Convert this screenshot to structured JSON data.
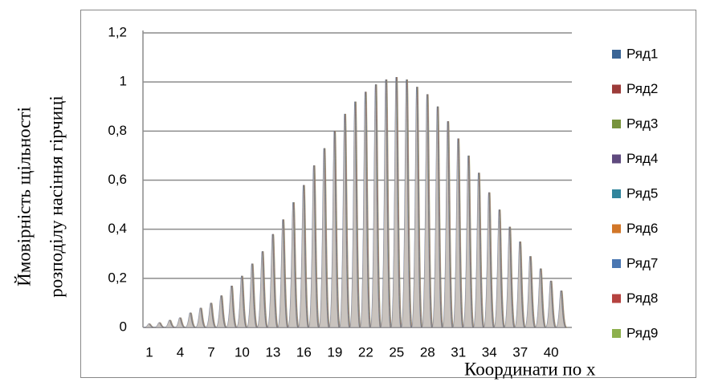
{
  "chart_data": {
    "type": "spike",
    "y_label": [
      "Ймовірність щільності",
      "розподілу  насіння гірчиці"
    ],
    "x_label": "Координати  по x",
    "categories": [
      "1",
      null,
      null,
      "4",
      null,
      null,
      "7",
      null,
      null,
      "10",
      null,
      null,
      "13",
      null,
      null,
      "16",
      null,
      null,
      "19",
      null,
      null,
      "22",
      null,
      null,
      "25",
      null,
      null,
      "28",
      null,
      null,
      "31",
      null,
      null,
      "34",
      null,
      null,
      "37",
      null,
      null,
      "40",
      null
    ],
    "ylim": [
      0,
      1.2
    ],
    "yticks": [
      0,
      {
        "value": 0.2,
        "label": "0,2"
      },
      {
        "value": 0.4,
        "label": "0,4"
      },
      {
        "value": 0.6,
        "label": "0,6"
      },
      {
        "value": 0.8,
        "label": "0,8"
      },
      1,
      {
        "value": 1.2,
        "label": "1,2"
      }
    ],
    "grid": true,
    "legend": "right",
    "series": [
      {
        "name": "Ряд1",
        "color": "#3a6596",
        "values": [
          0.015,
          0.02,
          0.03,
          0.04,
          0.06,
          0.08,
          0.1,
          0.13,
          0.17,
          0.21,
          0.26,
          0.31,
          0.38,
          0.44,
          0.51,
          0.58,
          0.66,
          0.73,
          0.8,
          0.87,
          0.92,
          0.96,
          0.99,
          1.01,
          1.02,
          1.01,
          0.98,
          0.95,
          0.9,
          0.84,
          0.77,
          0.7,
          0.63,
          0.55,
          0.48,
          0.41,
          0.35,
          0.29,
          0.24,
          0.19,
          0.15
        ]
      },
      {
        "name": "Ряд2",
        "color": "#9c3b39",
        "values": [
          0.015,
          0.02,
          0.03,
          0.04,
          0.06,
          0.08,
          0.1,
          0.13,
          0.17,
          0.21,
          0.26,
          0.31,
          0.38,
          0.44,
          0.51,
          0.58,
          0.66,
          0.73,
          0.8,
          0.87,
          0.92,
          0.96,
          0.99,
          1.01,
          1.02,
          1.01,
          0.98,
          0.95,
          0.9,
          0.84,
          0.77,
          0.7,
          0.63,
          0.55,
          0.48,
          0.41,
          0.35,
          0.29,
          0.24,
          0.19,
          0.15
        ]
      },
      {
        "name": "Ряд3",
        "color": "#77933c",
        "values": [
          0.015,
          0.02,
          0.03,
          0.04,
          0.06,
          0.08,
          0.1,
          0.13,
          0.17,
          0.21,
          0.26,
          0.31,
          0.38,
          0.44,
          0.51,
          0.58,
          0.66,
          0.73,
          0.8,
          0.87,
          0.92,
          0.96,
          0.99,
          1.01,
          1.02,
          1.01,
          0.98,
          0.95,
          0.9,
          0.84,
          0.77,
          0.7,
          0.63,
          0.55,
          0.48,
          0.41,
          0.35,
          0.29,
          0.24,
          0.19,
          0.15
        ]
      },
      {
        "name": "Ряд4",
        "color": "#5f4a7e",
        "values": [
          0.015,
          0.02,
          0.03,
          0.04,
          0.06,
          0.08,
          0.1,
          0.13,
          0.17,
          0.21,
          0.26,
          0.31,
          0.38,
          0.44,
          0.51,
          0.58,
          0.66,
          0.73,
          0.8,
          0.87,
          0.92,
          0.96,
          0.99,
          1.01,
          1.02,
          1.01,
          0.98,
          0.95,
          0.9,
          0.84,
          0.77,
          0.7,
          0.63,
          0.55,
          0.48,
          0.41,
          0.35,
          0.29,
          0.24,
          0.19,
          0.15
        ]
      },
      {
        "name": "Ряд5",
        "color": "#31859c",
        "values": [
          0.015,
          0.02,
          0.03,
          0.04,
          0.06,
          0.08,
          0.1,
          0.13,
          0.17,
          0.21,
          0.26,
          0.31,
          0.38,
          0.44,
          0.51,
          0.58,
          0.66,
          0.73,
          0.8,
          0.87,
          0.92,
          0.96,
          0.99,
          1.01,
          1.02,
          1.01,
          0.98,
          0.95,
          0.9,
          0.84,
          0.77,
          0.7,
          0.63,
          0.55,
          0.48,
          0.41,
          0.35,
          0.29,
          0.24,
          0.19,
          0.15
        ]
      },
      {
        "name": "Ряд6",
        "color": "#d27628",
        "values": [
          0.015,
          0.02,
          0.03,
          0.04,
          0.06,
          0.08,
          0.1,
          0.13,
          0.17,
          0.21,
          0.26,
          0.31,
          0.38,
          0.44,
          0.51,
          0.58,
          0.66,
          0.73,
          0.8,
          0.87,
          0.92,
          0.96,
          0.99,
          1.01,
          1.02,
          1.01,
          0.98,
          0.95,
          0.9,
          0.84,
          0.77,
          0.7,
          0.63,
          0.55,
          0.48,
          0.41,
          0.35,
          0.29,
          0.24,
          0.19,
          0.15
        ]
      },
      {
        "name": "Ряд7",
        "color": "#4a77b2",
        "values": [
          0.015,
          0.02,
          0.03,
          0.04,
          0.06,
          0.08,
          0.1,
          0.13,
          0.17,
          0.21,
          0.26,
          0.31,
          0.38,
          0.44,
          0.51,
          0.58,
          0.66,
          0.73,
          0.8,
          0.87,
          0.92,
          0.96,
          0.99,
          1.01,
          1.02,
          1.01,
          0.98,
          0.95,
          0.9,
          0.84,
          0.77,
          0.7,
          0.63,
          0.55,
          0.48,
          0.41,
          0.35,
          0.29,
          0.24,
          0.19,
          0.15
        ]
      },
      {
        "name": "Ряд8",
        "color": "#b5423f",
        "values": [
          0.015,
          0.02,
          0.03,
          0.04,
          0.06,
          0.08,
          0.1,
          0.13,
          0.17,
          0.21,
          0.26,
          0.31,
          0.38,
          0.44,
          0.51,
          0.58,
          0.66,
          0.73,
          0.8,
          0.87,
          0.92,
          0.96,
          0.99,
          1.01,
          1.02,
          1.01,
          0.98,
          0.95,
          0.9,
          0.84,
          0.77,
          0.7,
          0.63,
          0.55,
          0.48,
          0.41,
          0.35,
          0.29,
          0.24,
          0.19,
          0.15
        ]
      },
      {
        "name": "Ряд9",
        "color": "#8db04d",
        "values": [
          0.015,
          0.02,
          0.03,
          0.04,
          0.06,
          0.08,
          0.1,
          0.13,
          0.17,
          0.21,
          0.26,
          0.31,
          0.38,
          0.44,
          0.51,
          0.58,
          0.66,
          0.73,
          0.8,
          0.87,
          0.92,
          0.96,
          0.99,
          1.01,
          1.02,
          1.01,
          0.98,
          0.95,
          0.9,
          0.84,
          0.77,
          0.7,
          0.63,
          0.55,
          0.48,
          0.41,
          0.35,
          0.29,
          0.24,
          0.19,
          0.15
        ]
      }
    ]
  }
}
